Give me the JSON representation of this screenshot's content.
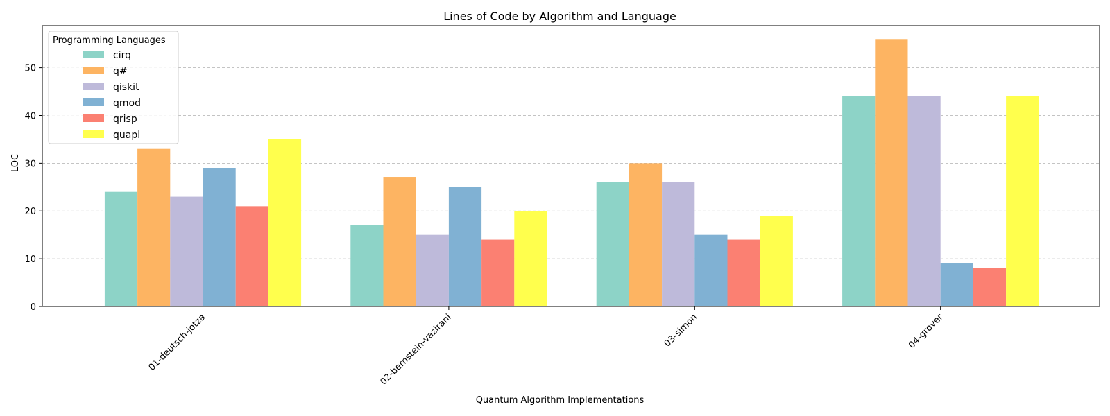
{
  "chart_data": {
    "type": "bar",
    "title": "Lines of Code by Algorithm and Language",
    "xlabel": "Quantum Algorithm Implementations",
    "ylabel": "LOC",
    "ylim": [
      0,
      58.8
    ],
    "yticks": [
      0,
      10,
      20,
      30,
      40,
      50
    ],
    "grid": "y-dashed",
    "legend_title": "Programming Languages",
    "legend_position": "top-left",
    "categories": [
      "01-deutsch-jotza",
      "02-bernstein-vazirani",
      "03-simon",
      "04-grover"
    ],
    "series": [
      {
        "name": "cirq",
        "color": "#8dd3c7",
        "values": [
          24,
          17,
          26,
          44
        ]
      },
      {
        "name": "q#",
        "color": "#fdb462",
        "values": [
          33,
          27,
          30,
          56
        ]
      },
      {
        "name": "qiskit",
        "color": "#bebada",
        "values": [
          23,
          15,
          26,
          44
        ]
      },
      {
        "name": "qmod",
        "color": "#80b1d3",
        "values": [
          29,
          25,
          15,
          9
        ]
      },
      {
        "name": "qrisp",
        "color": "#fb8072",
        "values": [
          21,
          14,
          14,
          8
        ]
      },
      {
        "name": "quapl",
        "color": "#ffff4d",
        "values": [
          35,
          20,
          19,
          44
        ]
      }
    ]
  }
}
